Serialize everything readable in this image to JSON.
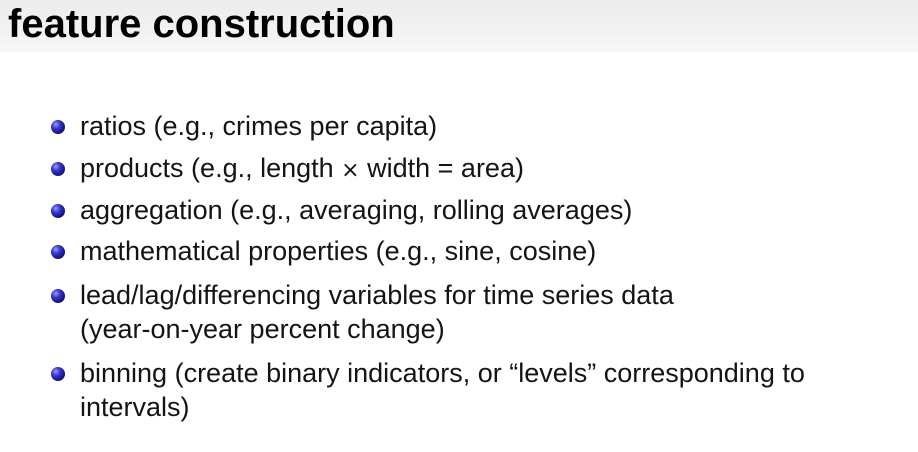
{
  "slide": {
    "title": "feature construction",
    "bullets": [
      {
        "text": "ratios (e.g., crimes per capita)"
      },
      {
        "pre": "products (e.g., length",
        "symbol": "×",
        "post": "width = area)"
      },
      {
        "text": "aggregation (e.g., averaging, rolling averages)"
      },
      {
        "text": "mathematical properties (e.g., sine, cosine)"
      },
      {
        "line1": "lead/lag/differencing variables for time series data",
        "line2": "(year-on-year percent change)"
      },
      {
        "line1": "binning (create binary indicators, or “levels” corresponding to",
        "line2": "intervals)"
      }
    ],
    "bullet_color": "#1a1a8c",
    "header_color": "#efefef"
  }
}
